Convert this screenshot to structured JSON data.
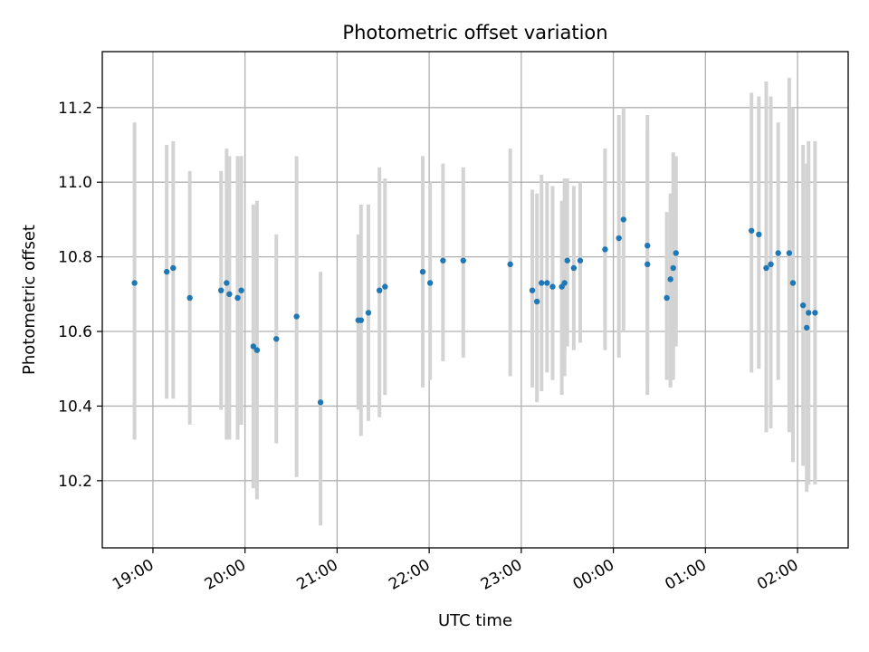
{
  "chart_data": {
    "type": "scatter",
    "title": "Photometric offset variation",
    "xlabel": "UTC time",
    "ylabel": "Photometric offset",
    "xlim": [
      18.45,
      26.55
    ],
    "ylim": [
      10.02,
      11.35
    ],
    "grid": true,
    "yticks": [
      10.2,
      10.4,
      10.6,
      10.8,
      11.0,
      11.2
    ],
    "ytick_labels": [
      "10.2",
      "10.4",
      "10.6",
      "10.8",
      "11.0",
      "11.2"
    ],
    "xticks": [
      19,
      20,
      21,
      22,
      23,
      24,
      25,
      26
    ],
    "xtick_labels": [
      "19:00",
      "20:00",
      "21:00",
      "22:00",
      "23:00",
      "00:00",
      "01:00",
      "02:00"
    ],
    "colors": {
      "points": "#1f77b4",
      "errorbars": "#d3d3d3"
    },
    "series": [
      {
        "name": "Photometric offset",
        "x": [
          18.8,
          19.15,
          19.22,
          19.4,
          19.74,
          19.8,
          19.83,
          19.92,
          19.96,
          20.09,
          20.13,
          20.34,
          20.56,
          20.82,
          21.23,
          21.26,
          21.34,
          21.46,
          21.52,
          21.93,
          22.01,
          22.15,
          22.37,
          22.88,
          23.12,
          23.17,
          23.22,
          23.28,
          23.34,
          23.44,
          23.47,
          23.5,
          23.57,
          23.64,
          23.91,
          24.06,
          24.11,
          24.37,
          24.37,
          24.58,
          24.62,
          24.65,
          24.68,
          25.5,
          25.58,
          25.66,
          25.71,
          25.79,
          25.91,
          25.95,
          26.06,
          26.1,
          26.12,
          26.19
        ],
        "y": [
          10.73,
          10.76,
          10.77,
          10.69,
          10.71,
          10.73,
          10.7,
          10.69,
          10.71,
          10.56,
          10.55,
          10.58,
          10.64,
          10.41,
          10.63,
          10.63,
          10.65,
          10.71,
          10.72,
          10.76,
          10.73,
          10.79,
          10.79,
          10.78,
          10.71,
          10.68,
          10.73,
          10.73,
          10.72,
          10.72,
          10.73,
          10.79,
          10.77,
          10.79,
          10.82,
          10.85,
          10.9,
          10.83,
          10.78,
          10.69,
          10.74,
          10.77,
          10.81,
          10.87,
          10.86,
          10.77,
          10.78,
          10.81,
          10.81,
          10.73,
          10.67,
          10.61,
          10.65,
          10.65
        ],
        "ylow": [
          10.31,
          10.42,
          10.42,
          10.35,
          10.39,
          10.31,
          10.31,
          10.31,
          10.35,
          10.18,
          10.15,
          10.3,
          10.21,
          10.08,
          10.39,
          10.32,
          10.36,
          10.37,
          10.43,
          10.45,
          10.47,
          10.52,
          10.53,
          10.48,
          10.45,
          10.41,
          10.44,
          10.49,
          10.47,
          10.43,
          10.48,
          10.56,
          10.55,
          10.57,
          10.55,
          10.53,
          10.6,
          10.43,
          10.47,
          10.47,
          10.45,
          10.47,
          10.56,
          10.49,
          10.5,
          10.33,
          10.34,
          10.47,
          10.33,
          10.25,
          10.24,
          10.17,
          10.19,
          10.19
        ],
        "yhigh": [
          11.16,
          11.1,
          11.11,
          11.03,
          11.03,
          11.09,
          11.07,
          11.07,
          11.07,
          10.94,
          10.95,
          10.86,
          11.07,
          10.76,
          10.86,
          10.94,
          10.94,
          11.04,
          11.01,
          11.07,
          11.0,
          11.05,
          11.04,
          11.09,
          10.98,
          10.97,
          11.02,
          11.0,
          10.99,
          10.95,
          11.01,
          11.01,
          10.99,
          11.0,
          11.09,
          11.18,
          11.2,
          11.18,
          11.14,
          10.92,
          10.97,
          11.08,
          11.07,
          11.24,
          11.23,
          11.27,
          11.23,
          11.16,
          11.28,
          11.2,
          11.1,
          11.05,
          11.11,
          11.11
        ]
      }
    ]
  }
}
